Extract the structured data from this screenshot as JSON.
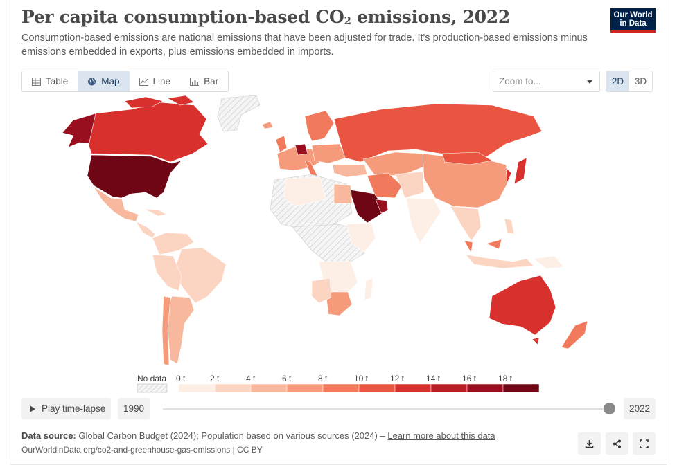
{
  "header": {
    "title_main": "Per capita consumption-based CO",
    "title_sub": "2",
    "title_end": " emissions, 2022",
    "subtitle_link": "Consumption-based emissions",
    "subtitle_rest": " are national emissions that have been adjusted for trade. It's production-based emissions minus emissions embedded in exports, plus emissions embedded in imports.",
    "logo_line1": "Our World",
    "logo_line2": "in Data"
  },
  "tabs": [
    {
      "label": "Table",
      "icon": "table-icon"
    },
    {
      "label": "Map",
      "icon": "globe-icon",
      "active": true
    },
    {
      "label": "Line",
      "icon": "line-chart-icon"
    },
    {
      "label": "Bar",
      "icon": "bar-chart-icon"
    }
  ],
  "zoom": {
    "placeholder": "Zoom to..."
  },
  "projection": {
    "two_d": "2D",
    "three_d": "3D",
    "active": "2D"
  },
  "legend": {
    "no_data": "No data",
    "bins": [
      "0 t",
      "2 t",
      "4 t",
      "6 t",
      "8 t",
      "10 t",
      "12 t",
      "14 t",
      "16 t",
      "18 t"
    ],
    "colors": [
      "#fdeee6",
      "#fbd5c2",
      "#f8b89d",
      "#f59a7a",
      "#f17a5c",
      "#ea5541",
      "#d8302c",
      "#bb1b24",
      "#98101f",
      "#6f0616"
    ]
  },
  "timeline": {
    "play_label": "Play time-lapse",
    "start_year": "1990",
    "end_year": "2022",
    "position": 1.0
  },
  "footer": {
    "source_label": "Data source:",
    "source_text": " Global Carbon Budget (2024); Population based on various sources (2024) – ",
    "source_link": "Learn more about this data",
    "url": "OurWorldinData.org/co2-and-greenhouse-gas-emissions | CC BY"
  },
  "colors": {
    "accent": "#002147",
    "active_tab": "#dbe5f0",
    "logo_red": "#ce261e"
  }
}
